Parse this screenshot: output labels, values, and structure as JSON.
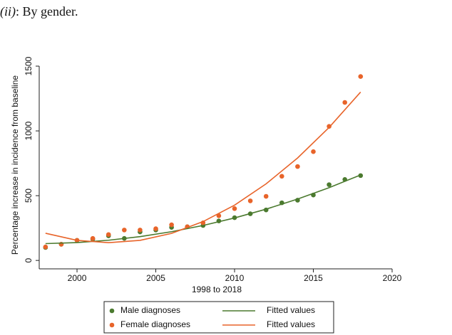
{
  "chart_data": {
    "type": "scatter",
    "title_label": "(ii)",
    "title": ": By gender.",
    "x_label": "1998 to 2018",
    "y_label": "Percentage increase in incidence from baseline",
    "xlim": [
      1997.6,
      2020
    ],
    "ylim": [
      -65,
      1500
    ],
    "xticks": [
      2000,
      2005,
      2010,
      2015,
      2020
    ],
    "yticks": [
      0,
      500,
      1000,
      1500
    ],
    "grid": false,
    "legend": "bottom",
    "series": [
      {
        "name": "Male diagnoses",
        "type": "scatter",
        "color": "#4b7a2f",
        "x": [
          1998,
          1999,
          2000,
          2001,
          2002,
          2003,
          2004,
          2005,
          2006,
          2007,
          2008,
          2009,
          2010,
          2011,
          2012,
          2013,
          2014,
          2015,
          2016,
          2017,
          2018
        ],
        "values": [
          100,
          125,
          155,
          165,
          190,
          170,
          220,
          235,
          255,
          260,
          270,
          305,
          330,
          360,
          390,
          445,
          465,
          505,
          585,
          625,
          655
        ]
      },
      {
        "name": "Female diagnoses",
        "type": "scatter",
        "color": "#e8642a",
        "x": [
          1998,
          1999,
          2000,
          2001,
          2002,
          2003,
          2004,
          2005,
          2006,
          2007,
          2008,
          2009,
          2010,
          2011,
          2012,
          2013,
          2014,
          2015,
          2016,
          2017,
          2018
        ],
        "values": [
          104,
          125,
          155,
          170,
          200,
          235,
          235,
          245,
          275,
          260,
          290,
          345,
          400,
          460,
          495,
          650,
          725,
          840,
          1035,
          1220,
          1420
        ]
      },
      {
        "name": "Fitted values",
        "type": "line",
        "color": "#4b7a2f",
        "x": [
          1998,
          2000,
          2002,
          2004,
          2006,
          2008,
          2010,
          2012,
          2014,
          2016,
          2018
        ],
        "values": [
          130,
          138,
          156,
          184,
          222,
          270,
          328,
          396,
          474,
          562,
          660
        ]
      },
      {
        "name": "Fitted values",
        "type": "line",
        "color": "#e8642a",
        "x": [
          1998,
          2000,
          2002,
          2004,
          2006,
          2008,
          2010,
          2012,
          2014,
          2016,
          2018
        ],
        "values": [
          210,
          155,
          137,
          155,
          209,
          300,
          427,
          591,
          791,
          1027,
          1300
        ]
      }
    ]
  }
}
